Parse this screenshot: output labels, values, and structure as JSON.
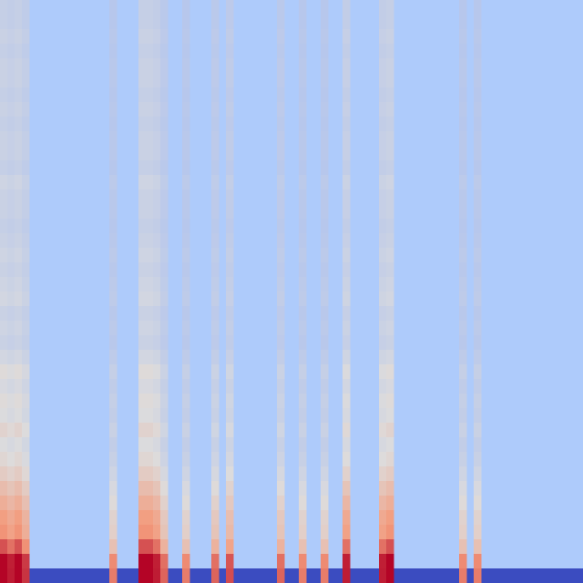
{
  "chart_data": {
    "type": "heatmap",
    "title": "",
    "xlabel": "",
    "ylabel": "",
    "colormap": "coolwarm",
    "colors": {
      "background": "#aecbfb",
      "low": "#3b4cc0",
      "mid": "#dddcdc",
      "high": "#b40426"
    },
    "n_cols": 80,
    "n_rows": 40,
    "row_profile": [
      0.06,
      0.06,
      0.07,
      0.06,
      0.07,
      0.07,
      0.06,
      0.07,
      0.06,
      0.07,
      0.07,
      0.06,
      0.08,
      0.07,
      0.07,
      0.06,
      0.07,
      0.08,
      0.07,
      0.08,
      0.09,
      0.07,
      0.08,
      0.07,
      0.09,
      0.12,
      0.1,
      0.12,
      0.11,
      0.14,
      0.11,
      0.13,
      0.16,
      0.2,
      0.24,
      0.28,
      0.3,
      0.38,
      0.62,
      0.0
    ],
    "columns": [
      {
        "index": 0,
        "weight": 1.0
      },
      {
        "index": 1,
        "weight": 0.9
      },
      {
        "index": 2,
        "weight": 1.0
      },
      {
        "index": 3,
        "weight": 0.8
      },
      {
        "index": 15,
        "weight": 0.5
      },
      {
        "index": 19,
        "weight": 1.0
      },
      {
        "index": 20,
        "weight": 1.0
      },
      {
        "index": 21,
        "weight": 0.9
      },
      {
        "index": 22,
        "weight": 0.6
      },
      {
        "index": 25,
        "weight": 0.5
      },
      {
        "index": 29,
        "weight": 0.6
      },
      {
        "index": 31,
        "weight": 0.7
      },
      {
        "index": 38,
        "weight": 0.6
      },
      {
        "index": 41,
        "weight": 0.5
      },
      {
        "index": 44,
        "weight": 0.5
      },
      {
        "index": 47,
        "weight": 0.9
      },
      {
        "index": 52,
        "weight": 0.9
      },
      {
        "index": 53,
        "weight": 1.0
      },
      {
        "index": 63,
        "weight": 0.5
      },
      {
        "index": 65,
        "weight": 0.5
      }
    ],
    "bottom_row_value": 0.0,
    "grid": false,
    "legend": "none"
  }
}
